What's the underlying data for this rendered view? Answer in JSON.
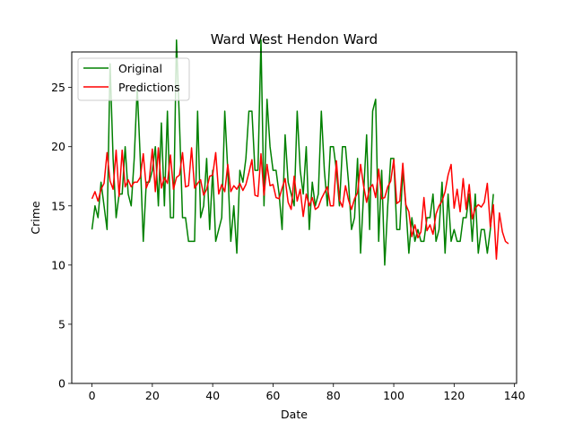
{
  "chart_data": {
    "type": "line",
    "title": "Ward West Hendon Ward",
    "xlabel": "Date",
    "ylabel": "Crime",
    "xlim": [
      -6.7,
      140.7
    ],
    "ylim": [
      0,
      28
    ],
    "xticks": [
      0,
      20,
      40,
      60,
      80,
      100,
      120,
      140
    ],
    "yticks": [
      0,
      5,
      10,
      15,
      20,
      25
    ],
    "grid": false,
    "legend": "top-left",
    "series": [
      {
        "name": "Original",
        "color": "#008000",
        "values": [
          13,
          15,
          14,
          17,
          15,
          13,
          27,
          19,
          14,
          16,
          16,
          20,
          16,
          15,
          19,
          25,
          19,
          12,
          17,
          17,
          18,
          20,
          15,
          22,
          15,
          23,
          14,
          14,
          29,
          22,
          14,
          14,
          12,
          12,
          12,
          23,
          14,
          15,
          19,
          13,
          18,
          12,
          13,
          14,
          23,
          18,
          12,
          15,
          11,
          18,
          17,
          19,
          23,
          23,
          18,
          18,
          29,
          15,
          24,
          20,
          18,
          18,
          16,
          13,
          21,
          17,
          16,
          15,
          23,
          18,
          16,
          20,
          13,
          17,
          15,
          16,
          23,
          18,
          15,
          20,
          20,
          18,
          15,
          20,
          20,
          17,
          13,
          14,
          19,
          11,
          16,
          21,
          13,
          23,
          24,
          12,
          18,
          10,
          15,
          19,
          19,
          13,
          13,
          18,
          15,
          11,
          14,
          12,
          13,
          12,
          12,
          14,
          14,
          16,
          12,
          13,
          17,
          11,
          16,
          12,
          13,
          12,
          12,
          14,
          14,
          16,
          12,
          16,
          11,
          13,
          13,
          11,
          13,
          16
        ]
      },
      {
        "name": "Predictions",
        "color": "#ff0000",
        "values": [
          15.6,
          16.2,
          15.4,
          16.4,
          16.9,
          19.5,
          17.1,
          16.4,
          19.7,
          15.8,
          19.7,
          16.6,
          17.2,
          16.6,
          17.0,
          17.0,
          17.4,
          19.4,
          16.5,
          17.2,
          19.8,
          16.2,
          19.9,
          16.5,
          17.4,
          16.9,
          19.3,
          16.4,
          17.4,
          17.6,
          19.5,
          16.6,
          16.7,
          19.9,
          16.5,
          16.9,
          17.2,
          15.9,
          16.4,
          17.5,
          17.6,
          19.5,
          16.0,
          16.8,
          16.2,
          18.5,
          16.2,
          16.7,
          16.4,
          16.9,
          16.3,
          16.8,
          17.8,
          18.9,
          15.9,
          15.8,
          19.4,
          15.9,
          18.5,
          16.7,
          16.8,
          15.7,
          15.6,
          16.5,
          17.3,
          15.3,
          14.7,
          17.5,
          15.4,
          16.4,
          14.1,
          16.0,
          15.0,
          15.7,
          14.7,
          14.9,
          15.6,
          16.1,
          16.6,
          15.0,
          15.0,
          18.8,
          15.5,
          14.9,
          16.7,
          15.5,
          14.7,
          15.6,
          16.1,
          18.5,
          16.7,
          15.3,
          16.5,
          16.8,
          15.7,
          18.1,
          15.6,
          15.7,
          16.6,
          17.1,
          18.9,
          15.2,
          15.4,
          18.6,
          15.1,
          14.5,
          12.4,
          13.4,
          12.3,
          12.8,
          15.7,
          12.9,
          13.4,
          12.6,
          14.3,
          15.0,
          15.4,
          16.2,
          17.6,
          18.5,
          14.8,
          16.4,
          14.5,
          17.3,
          14.7,
          16.8,
          13.9,
          14.8,
          15.1,
          14.9,
          15.3,
          16.9,
          13.2,
          15.1,
          10.5,
          14.4,
          12.8,
          12.0,
          11.8
        ]
      }
    ]
  }
}
